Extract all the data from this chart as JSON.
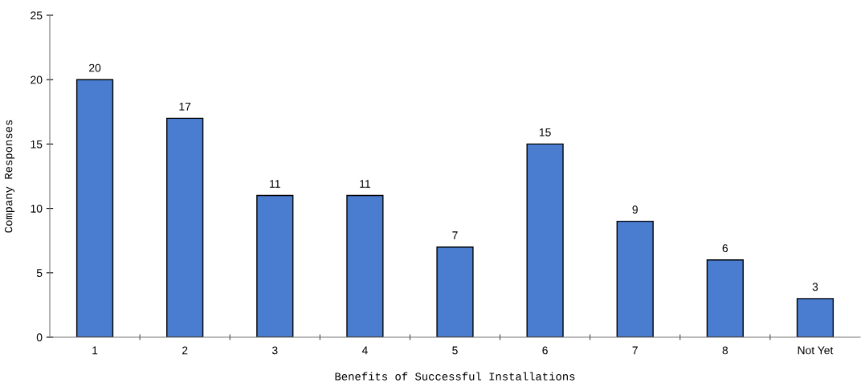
{
  "chart_data": {
    "type": "bar",
    "xlabel": "Benefits of Successful Installations",
    "ylabel": "Company Responses",
    "categories": [
      "1",
      "2",
      "3",
      "4",
      "5",
      "6",
      "7",
      "8",
      "Not Yet"
    ],
    "values": [
      20,
      17,
      11,
      11,
      7,
      15,
      9,
      6,
      3
    ],
    "color": "#4a7dd0",
    "ylim": [
      0,
      25
    ],
    "yticks": [
      0,
      5,
      10,
      15,
      20,
      25
    ],
    "grid": false,
    "data_labels": true
  }
}
